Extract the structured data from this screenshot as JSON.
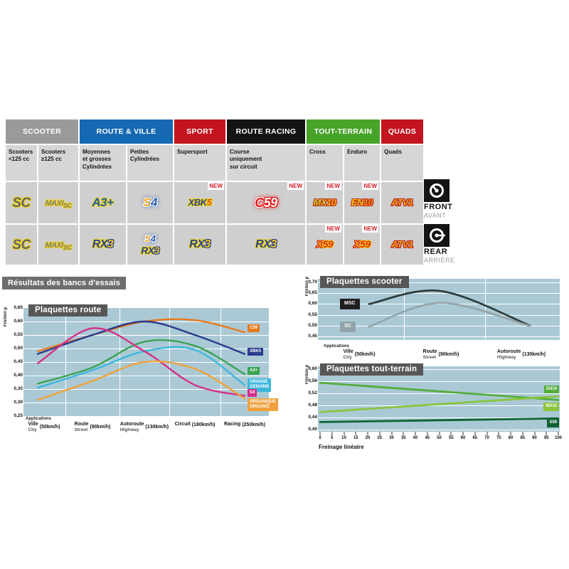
{
  "table": {
    "new_label": "NEW",
    "categories": [
      {
        "label": "SCOOTER",
        "color": "#9a9a9a",
        "span": 2
      },
      {
        "label": "ROUTE & VILLE",
        "color": "#1569b3",
        "span": 2
      },
      {
        "label": "SPORT",
        "color": "#c41420",
        "span": 1
      },
      {
        "label": "ROUTE RACING",
        "color": "#141414",
        "span": 1
      },
      {
        "label": "TOUT-TERRAIN",
        "color": "#47a429",
        "span": 2
      },
      {
        "label": "QUADS",
        "color": "#c41420",
        "span": 1
      }
    ],
    "subheaders": [
      "Scooters\n<125 cc",
      "Scooters\n≥125 cc",
      "Moyennes\net grosses\nCylindrées",
      "Petites\nCylindrées",
      "Supersport",
      "Course\nuniquement\nsur circuit",
      "Cross",
      "Enduro",
      "Quads"
    ],
    "rows": [
      {
        "name": "front",
        "cells": [
          {
            "badges": [
              {
                "id": "SC",
                "parts": [
                  {
                    "t": "SC",
                    "c": "#63666b",
                    "o": "#f0d417",
                    "fs": 19
                  }
                ]
              }
            ]
          },
          {
            "badges": [
              {
                "id": "MAXI SC",
                "parts": [
                  {
                    "t": "MAXI",
                    "c": "#7a7d82",
                    "o": "#f0d417",
                    "fs": 11
                  },
                  {
                    "t": "SC",
                    "c": "#7a7d82",
                    "o": "#f0d417",
                    "fs": 9,
                    "dy": 3
                  }
                ]
              }
            ]
          },
          {
            "badges": [
              {
                "id": "A3+",
                "parts": [
                  {
                    "t": "A3+",
                    "c": "#1d5dab",
                    "o": "#f0d417",
                    "fs": 17
                  }
                ]
              }
            ]
          },
          {
            "badges": [
              {
                "id": "S4",
                "parts": [
                  {
                    "t": "S",
                    "c": "#f0a41c",
                    "o": "#ffffff",
                    "fs": 17,
                    "glow": "#3a66b0"
                  },
                  {
                    "t": "4",
                    "c": "#2a5caa",
                    "o": "#ffffff",
                    "fs": 17,
                    "glow": "#3a66b0"
                  }
                ]
              }
            ]
          },
          {
            "new": true,
            "badges": [
              {
                "id": "XBK5",
                "parts": [
                  {
                    "t": "XBK",
                    "c": "#264293",
                    "o": "#f0d417",
                    "fs": 13
                  },
                  {
                    "t": "5",
                    "c": "#e0561a",
                    "o": "#f0d417",
                    "fs": 13
                  }
                ]
              }
            ]
          },
          {
            "new": true,
            "badges": [
              {
                "id": "C59",
                "parts": [
                  {
                    "t": "C",
                    "c": "#e31313",
                    "o": "#ffffff",
                    "fs": 18,
                    "glow": "#e31313"
                  },
                  {
                    "t": "59",
                    "c": "#ffffff",
                    "o": "#e31313",
                    "fs": 18,
                    "glow": "#e31313"
                  }
                ]
              }
            ]
          },
          {
            "new": true,
            "badges": [
              {
                "id": "MX10",
                "parts": [
                  {
                    "t": "MX",
                    "c": "#c3cf33",
                    "o": "#c22b10",
                    "fs": 13
                  },
                  {
                    "t": "10",
                    "c": "#f2b51d",
                    "o": "#c22b10",
                    "fs": 13
                  }
                ]
              }
            ]
          },
          {
            "new": true,
            "badges": [
              {
                "id": "EN10",
                "parts": [
                  {
                    "t": "EN",
                    "c": "#f2c41d",
                    "o": "#c22b10",
                    "fs": 13
                  },
                  {
                    "t": "10",
                    "c": "#ef8c1a",
                    "o": "#c22b10",
                    "fs": 13
                  }
                ]
              }
            ]
          },
          {
            "badges": [
              {
                "id": "ATV1",
                "parts": [
                  {
                    "t": "ATV1",
                    "c": "#f2a51d",
                    "o": "#b51d10",
                    "fs": 13
                  }
                ]
              }
            ]
          }
        ]
      },
      {
        "name": "rear",
        "cells": [
          {
            "badges": [
              {
                "id": "SC",
                "parts": [
                  {
                    "t": "SC",
                    "c": "#63666b",
                    "o": "#f0d417",
                    "fs": 19
                  }
                ]
              }
            ]
          },
          {
            "badges": [
              {
                "id": "MAXI SC",
                "parts": [
                  {
                    "t": "MAXI",
                    "c": "#7a7d82",
                    "o": "#f0d417",
                    "fs": 11
                  },
                  {
                    "t": "SC",
                    "c": "#7a7d82",
                    "o": "#f0d417",
                    "fs": 9,
                    "dy": 3
                  }
                ]
              }
            ]
          },
          {
            "badges": [
              {
                "id": "RX3",
                "parts": [
                  {
                    "t": "RX",
                    "c": "#264293",
                    "o": "#f0d417",
                    "fs": 16
                  },
                  {
                    "t": "3",
                    "c": "#f2c41d",
                    "o": "#264293",
                    "fs": 16
                  }
                ]
              }
            ]
          },
          {
            "badges": [
              {
                "id": "S4",
                "parts": [
                  {
                    "t": "S",
                    "c": "#f0a41c",
                    "o": "#ffffff",
                    "fs": 13,
                    "glow": "#3a66b0"
                  },
                  {
                    "t": "4",
                    "c": "#2a5caa",
                    "o": "#ffffff",
                    "fs": 13,
                    "glow": "#3a66b0"
                  }
                ]
              },
              {
                "id": "RX3",
                "parts": [
                  {
                    "t": "RX",
                    "c": "#264293",
                    "o": "#f0d417",
                    "fs": 14
                  },
                  {
                    "t": "3",
                    "c": "#f2c41d",
                    "o": "#264293",
                    "fs": 14
                  }
                ]
              }
            ]
          },
          {
            "badges": [
              {
                "id": "RX3",
                "parts": [
                  {
                    "t": "RX",
                    "c": "#264293",
                    "o": "#f0d417",
                    "fs": 16
                  },
                  {
                    "t": "3",
                    "c": "#f2c41d",
                    "o": "#264293",
                    "fs": 16
                  }
                ]
              }
            ]
          },
          {
            "badges": [
              {
                "id": "RX3",
                "parts": [
                  {
                    "t": "RX",
                    "c": "#264293",
                    "o": "#f0d417",
                    "fs": 16
                  },
                  {
                    "t": "3",
                    "c": "#f2c41d",
                    "o": "#264293",
                    "fs": 16
                  }
                ]
              }
            ]
          },
          {
            "new": true,
            "badges": [
              {
                "id": "X59",
                "parts": [
                  {
                    "t": "X",
                    "c": "#f2a51d",
                    "o": "#cf2310",
                    "fs": 14
                  },
                  {
                    "t": "59",
                    "c": "#e02810",
                    "o": "#f2c41d",
                    "fs": 14
                  }
                ]
              }
            ]
          },
          {
            "new": true,
            "badges": [
              {
                "id": "X59",
                "parts": [
                  {
                    "t": "X",
                    "c": "#f2a51d",
                    "o": "#cf2310",
                    "fs": 14
                  },
                  {
                    "t": "59",
                    "c": "#e02810",
                    "o": "#f2c41d",
                    "fs": 14
                  }
                ]
              }
            ]
          },
          {
            "badges": [
              {
                "id": "ATV1",
                "parts": [
                  {
                    "t": "ATV1",
                    "c": "#f2a51d",
                    "o": "#b51d10",
                    "fs": 13
                  }
                ]
              }
            ]
          }
        ]
      }
    ]
  },
  "position_labels": {
    "front": {
      "label": "FRONT",
      "sub": "AVANT"
    },
    "rear": {
      "label": "REAR",
      "sub": "ARRIÈRE"
    }
  },
  "results_title": "Résultats des bancs d'essais",
  "chart_data": [
    {
      "id": "route",
      "type": "line",
      "title": "Plaquettes route",
      "ylabel": "Friction µ",
      "x_caption": "Applications",
      "ylim": [
        0.25,
        0.65
      ],
      "yticks": [
        "0,65",
        "0,60",
        "0,55",
        "0,50",
        "0,45",
        "0,40",
        "0,35",
        "0,30",
        "0,25"
      ],
      "grid": true,
      "legend_position": "right",
      "categories": [
        {
          "fr": "Ville",
          "en": "City",
          "speed": "(50km/h)"
        },
        {
          "fr": "Route",
          "en": "Street",
          "speed": "(90km/h)"
        },
        {
          "fr": "Autoroute",
          "en": "Highway",
          "speed": "(130km/h)"
        },
        {
          "fr": "Circuit",
          "en": "",
          "speed": "(180km/h)"
        },
        {
          "fr": "Racing",
          "en": "",
          "speed": "(250km/h)"
        }
      ],
      "series": [
        {
          "name": "C59",
          "label": "C59",
          "color": "#e8791c",
          "label_v": 0.571,
          "values": [
            0.49,
            0.55,
            0.6,
            0.605,
            0.56
          ]
        },
        {
          "name": "XBK5",
          "label": "XBK5",
          "color": "#2a3a8c",
          "label_v": 0.484,
          "values": [
            0.48,
            0.55,
            0.6,
            0.55,
            0.48
          ]
        },
        {
          "name": "A3+",
          "label": "A3+",
          "color": "#3aa352",
          "label_v": 0.413,
          "values": [
            0.37,
            0.43,
            0.525,
            0.51,
            0.405
          ]
        },
        {
          "name": "ORIGINE",
          "label": "ORIGINE\nGENUINE",
          "color": "#3db7dc",
          "label_v": 0.368,
          "values": [
            0.355,
            0.42,
            0.49,
            0.495,
            0.365
          ]
        },
        {
          "name": "S4",
          "label": "S4",
          "color": "#d53087",
          "label_v": 0.332,
          "values": [
            0.445,
            0.575,
            0.49,
            0.365,
            0.325
          ]
        },
        {
          "name": "ORGANIQUE",
          "label": "ORGANIQUE\nORGANIC",
          "color": "#efa13c",
          "label_v": 0.295,
          "values": [
            0.31,
            0.38,
            0.45,
            0.425,
            0.315
          ]
        }
      ]
    },
    {
      "id": "scooter",
      "type": "line",
      "title": "Plaquettes scooter",
      "ylabel": "Friction µ",
      "x_caption": "Applications",
      "ylim": [
        0.45,
        0.7
      ],
      "yticks": [
        "0,70",
        "0,65",
        "0,60",
        "0,55",
        "0,50",
        "0,45"
      ],
      "grid": true,
      "legend_position": "left",
      "categories": [
        {
          "fr": "Ville",
          "en": "City",
          "speed": "(50km/h)"
        },
        {
          "fr": "Route",
          "en": "Street",
          "speed": "(90km/h)"
        },
        {
          "fr": "Autoroute",
          "en": "Highway",
          "speed": "(130km/h)"
        }
      ],
      "series": [
        {
          "name": "MSC",
          "label": "MSC",
          "color": "#2f3d3c",
          "label_bg": "#1f1f1f",
          "values": [
            0.6,
            0.66,
            0.5
          ]
        },
        {
          "name": "SC",
          "label": "SC",
          "color": "#94a6aa",
          "label_bg": "#8fa3a8",
          "values": [
            0.495,
            0.605,
            0.498
          ]
        }
      ]
    },
    {
      "id": "tout-terrain",
      "type": "line",
      "title": "Plaquettes tout-terrain",
      "ylabel": "Friction µ",
      "xlabel": "Freinage linéaire",
      "ylim": [
        0.4,
        0.6
      ],
      "xlim": [
        0,
        100
      ],
      "yticks": [
        "0,60",
        "0,56",
        "0,52",
        "0,48",
        "0,44",
        "0,40"
      ],
      "xticks": [
        0,
        5,
        10,
        15,
        20,
        25,
        30,
        35,
        40,
        45,
        50,
        55,
        60,
        65,
        70,
        75,
        80,
        85,
        90,
        95,
        100
      ],
      "grid": true,
      "legend_position": "right",
      "series": [
        {
          "name": "EN10",
          "label": "EN10",
          "color": "#55ad3c",
          "label_v": 0.53,
          "values": [
            0.555,
            0.498
          ]
        },
        {
          "name": "MX10",
          "label": "MX10",
          "color": "#8ac43e",
          "label_v": 0.472,
          "values": [
            0.458,
            0.51
          ]
        },
        {
          "name": "X59",
          "label": "X59",
          "color": "#0f6233",
          "label_v": 0.418,
          "values": [
            0.425,
            0.437
          ]
        }
      ]
    }
  ]
}
